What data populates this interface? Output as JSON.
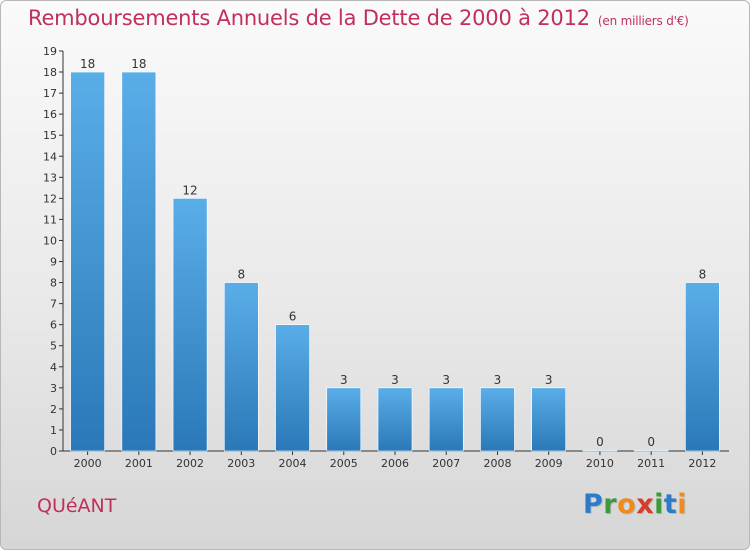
{
  "title": "Remboursements Annuels de la Dette de 2000 à 2012",
  "unit": "(en milliers d'€)",
  "commune": "QUéANT",
  "logo": {
    "letters": [
      {
        "ch": "P",
        "color": "#2b7bc8"
      },
      {
        "ch": "r",
        "color": "#3b9a3b"
      },
      {
        "ch": "o",
        "color": "#f08a1a"
      },
      {
        "ch": "x",
        "color": "#d43d2a"
      },
      {
        "ch": "i",
        "color": "#3b9a3b"
      },
      {
        "ch": "t",
        "color": "#2b7bc8"
      },
      {
        "ch": "i",
        "color": "#f08a1a"
      }
    ]
  },
  "colors": {
    "bar_top": "#5aaee8",
    "bar_bottom": "#2a78b8",
    "text": "#c0305a"
  },
  "chart_data": {
    "type": "bar",
    "categories": [
      "2000",
      "2001",
      "2002",
      "2003",
      "2004",
      "2005",
      "2006",
      "2007",
      "2008",
      "2009",
      "2010",
      "2011",
      "2012"
    ],
    "values": [
      18,
      18,
      12,
      8,
      6,
      3,
      3,
      3,
      3,
      3,
      0,
      0,
      8
    ],
    "data_labels": [
      "18",
      "18",
      "12",
      "8",
      "6",
      "3",
      "3",
      "3",
      "3",
      "3",
      "0",
      "0",
      "8"
    ],
    "yticks": [
      "0",
      "1",
      "2",
      "3",
      "4",
      "5",
      "6",
      "7",
      "8",
      "9",
      "10",
      "11",
      "12",
      "13",
      "14",
      "15",
      "16",
      "17",
      "18",
      "19"
    ],
    "ylim": [
      0,
      19
    ],
    "grid": false,
    "title": "Remboursements Annuels de la Dette de 2000 à 2012",
    "xlabel": "",
    "ylabel": ""
  }
}
